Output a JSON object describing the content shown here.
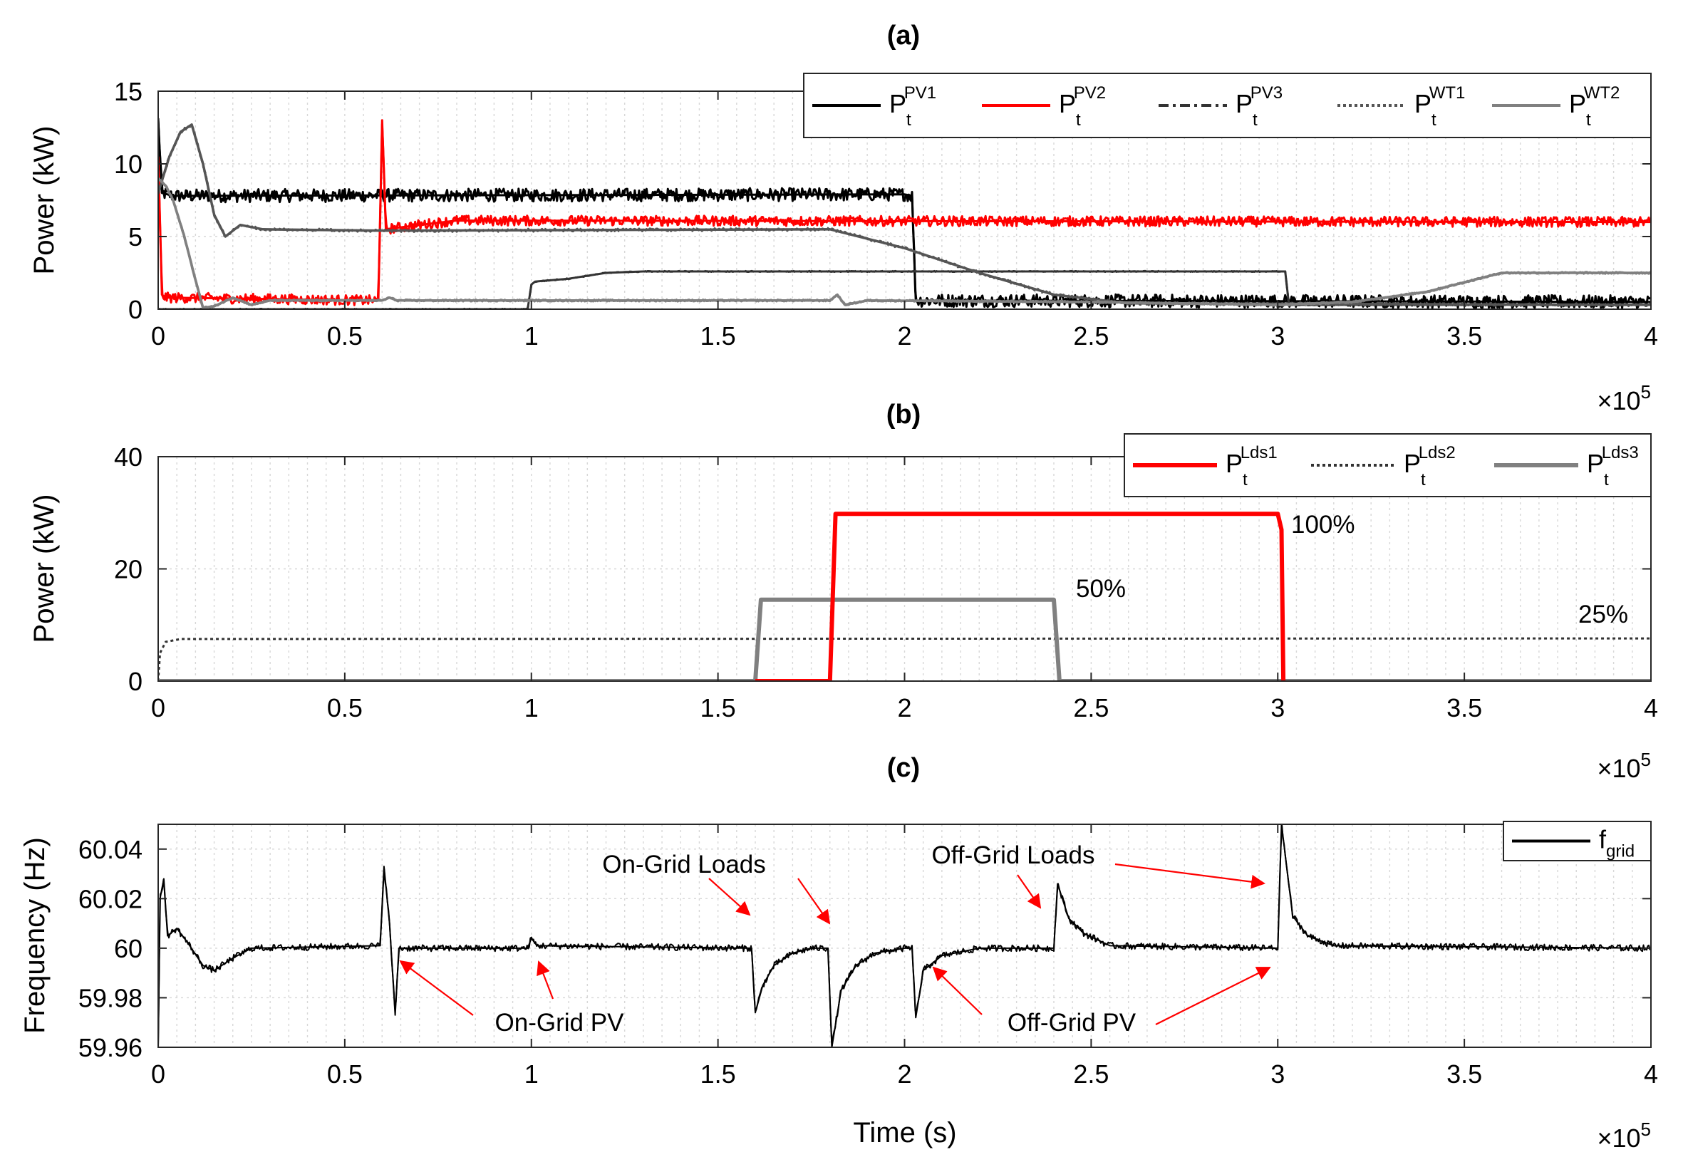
{
  "chart_data": [
    {
      "id": "a",
      "type": "line",
      "title": "(a)",
      "xlabel": "",
      "ylabel": "Power (kW)",
      "xlim": [
        0,
        400000
      ],
      "ylim": [
        0,
        15
      ],
      "xticks": [
        0,
        50000,
        100000,
        150000,
        200000,
        250000,
        300000,
        350000,
        400000
      ],
      "xtick_labels": [
        "0",
        "0.5",
        "1",
        "1.5",
        "2",
        "2.5",
        "3",
        "3.5",
        "4"
      ],
      "yticks": [
        0,
        5,
        10,
        15
      ],
      "ytick_labels": [
        "0",
        "5",
        "10",
        "15"
      ],
      "x_multiplier": {
        "base": "×10",
        "exp": "5"
      },
      "grid": true,
      "legend_position": "top-right",
      "series": [
        {
          "name": "PV1",
          "label_base": "P",
          "label_sub": "t",
          "label_sup": "PV1",
          "color": "#000000",
          "dash": "solid",
          "width": 3,
          "noise": 0.45,
          "points": [
            [
              0,
              13
            ],
            [
              1000,
              8
            ],
            [
              4000,
              7.8
            ],
            [
              200000,
              7.9
            ],
            [
              202000,
              7.8
            ],
            [
              203000,
              0.6
            ],
            [
              400000,
              0.5
            ]
          ]
        },
        {
          "name": "PV2",
          "label_base": "P",
          "label_sub": "t",
          "label_sup": "PV2",
          "color": "#ff0000",
          "dash": "solid",
          "width": 3,
          "noise": 0.35,
          "points": [
            [
              0,
              10.5
            ],
            [
              1000,
              1
            ],
            [
              2000,
              0.8
            ],
            [
              59000,
              0.6
            ],
            [
              60000,
              13
            ],
            [
              61000,
              5.5
            ],
            [
              70000,
              5.8
            ],
            [
              80000,
              6.1
            ],
            [
              400000,
              6
            ]
          ]
        },
        {
          "name": "PV3",
          "label_base": "P",
          "label_sub": "t",
          "label_sup": "PV3",
          "color": "#333333",
          "dash": "14,6,4,6",
          "width": 3,
          "noise": 0.03,
          "points": [
            [
              0,
              0
            ],
            [
              99000,
              0
            ],
            [
              100000,
              1.7
            ],
            [
              101000,
              1.9
            ],
            [
              110000,
              2.1
            ],
            [
              120000,
              2.5
            ],
            [
              130000,
              2.6
            ],
            [
              200000,
              2.6
            ],
            [
              300000,
              2.6
            ],
            [
              302000,
              2.6
            ],
            [
              303000,
              0.3
            ],
            [
              400000,
              0.3
            ]
          ]
        },
        {
          "name": "WT1",
          "label_base": "P",
          "label_sub": "t",
          "label_sup": "WT1",
          "color": "#555555",
          "dash": "4,4",
          "width": 3.5,
          "noise": 0.08,
          "points": [
            [
              0,
              8
            ],
            [
              3000,
              10.5
            ],
            [
              6000,
              12.2
            ],
            [
              9000,
              12.7
            ],
            [
              12000,
              10
            ],
            [
              15000,
              6.5
            ],
            [
              18000,
              5
            ],
            [
              22000,
              5.8
            ],
            [
              28000,
              5.5
            ],
            [
              60000,
              5.4
            ],
            [
              180000,
              5.5
            ],
            [
              200000,
              4.2
            ],
            [
              220000,
              2.5
            ],
            [
              240000,
              1
            ],
            [
              260000,
              0.4
            ],
            [
              400000,
              0.3
            ]
          ]
        },
        {
          "name": "WT2",
          "label_base": "P",
          "label_sub": "t",
          "label_sup": "WT2",
          "color": "#808080",
          "dash": "solid",
          "width": 3.5,
          "noise": 0.05,
          "points": [
            [
              0,
              9
            ],
            [
              2000,
              8.5
            ],
            [
              4000,
              7.5
            ],
            [
              7000,
              5
            ],
            [
              10000,
              2
            ],
            [
              12000,
              0.1
            ],
            [
              15000,
              0.2
            ],
            [
              20000,
              0.8
            ],
            [
              25000,
              0.3
            ],
            [
              30000,
              0.6
            ],
            [
              60000,
              0.6
            ],
            [
              62000,
              0.8
            ],
            [
              64000,
              0.6
            ],
            [
              180000,
              0.6
            ],
            [
              182000,
              1
            ],
            [
              184000,
              0.3
            ],
            [
              190000,
              0.6
            ],
            [
              250000,
              0.5
            ],
            [
              300000,
              0.3
            ],
            [
              320000,
              0.5
            ],
            [
              340000,
              1.2
            ],
            [
              360000,
              2.5
            ],
            [
              400000,
              2.5
            ]
          ]
        }
      ]
    },
    {
      "id": "b",
      "type": "line",
      "title": "(b)",
      "xlabel": "",
      "ylabel": "Power (kW)",
      "xlim": [
        0,
        400000
      ],
      "ylim": [
        0,
        40
      ],
      "xticks": [
        0,
        50000,
        100000,
        150000,
        200000,
        250000,
        300000,
        350000,
        400000
      ],
      "xtick_labels": [
        "0",
        "0.5",
        "1",
        "1.5",
        "2",
        "2.5",
        "3",
        "3.5",
        "4"
      ],
      "yticks": [
        0,
        20,
        40
      ],
      "ytick_labels": [
        "0",
        "20",
        "40"
      ],
      "x_multiplier": {
        "base": "×10",
        "exp": "5"
      },
      "grid": true,
      "legend_position": "top-right",
      "series": [
        {
          "name": "Lds2",
          "label_base": "P",
          "label_sub": "t",
          "label_sup": "Lds2",
          "color": "#333333",
          "dash": "4,4",
          "width": 3,
          "noise": 0,
          "points": [
            [
              0,
              0
            ],
            [
              500,
              5
            ],
            [
              2000,
              7
            ],
            [
              6000,
              7.5
            ],
            [
              400000,
              7.6
            ]
          ]
        },
        {
          "name": "Lds3",
          "label_base": "P",
          "label_sub": "t",
          "label_sup": "Lds3",
          "color": "#808080",
          "dash": "solid",
          "width": 6,
          "noise": 0,
          "points": [
            [
              0,
              0
            ],
            [
              160000,
              0
            ],
            [
              161500,
              14.5
            ],
            [
              240000,
              14.5
            ],
            [
              241500,
              0
            ],
            [
              400000,
              0
            ]
          ]
        },
        {
          "name": "Lds1",
          "label_base": "P",
          "label_sub": "t",
          "label_sup": "Lds1",
          "color": "#ff0000",
          "dash": "solid",
          "width": 6,
          "noise": 0,
          "points": [
            [
              160000,
              0
            ],
            [
              180000,
              0
            ],
            [
              181500,
              29.8
            ],
            [
              300000,
              29.8
            ],
            [
              301000,
              27
            ],
            [
              301500,
              0
            ]
          ]
        }
      ],
      "annotations": [
        {
          "text": "100%",
          "x": 304000,
          "y": 27.5
        },
        {
          "text": "50%",
          "x": 245000,
          "y": 16.5
        },
        {
          "text": "25%",
          "x": 372000,
          "y": 10
        }
      ]
    },
    {
      "id": "c",
      "type": "line",
      "title": "(c)",
      "xlabel": "Time (s)",
      "ylabel": "Frequency (Hz)",
      "xlim": [
        0,
        400000
      ],
      "ylim": [
        59.96,
        60.05
      ],
      "xticks": [
        0,
        50000,
        100000,
        150000,
        200000,
        250000,
        300000,
        350000,
        400000
      ],
      "xtick_labels": [
        "0",
        "0.5",
        "1",
        "1.5",
        "2",
        "2.5",
        "3",
        "3.5",
        "4"
      ],
      "yticks": [
        59.96,
        59.98,
        60,
        60.02,
        60.04
      ],
      "ytick_labels": [
        "59.96",
        "59.98",
        "60",
        "60.02",
        "60.04"
      ],
      "x_multiplier": {
        "base": "×10",
        "exp": "5"
      },
      "grid": true,
      "legend_position": "top-right",
      "series": [
        {
          "name": "fgrid",
          "label_base": "f",
          "label_sub": "grid",
          "label_sup": "",
          "color": "#000000",
          "dash": "solid",
          "width": 2,
          "noise": 0.0013,
          "points": [
            [
              0,
              59.96
            ],
            [
              500,
              60.02
            ],
            [
              1500,
              60.028
            ],
            [
              2500,
              60.005
            ],
            [
              5000,
              60.008
            ],
            [
              8000,
              60.002
            ],
            [
              12000,
              59.993
            ],
            [
              15000,
              59.991
            ],
            [
              20000,
              59.996
            ],
            [
              25000,
              60
            ],
            [
              59500,
              60.001
            ],
            [
              60500,
              60.033
            ],
            [
              62000,
              60.01
            ],
            [
              63500,
              59.973
            ],
            [
              64500,
              60
            ],
            [
              99000,
              60
            ],
            [
              100000,
              60.004
            ],
            [
              101500,
              60.001
            ],
            [
              159000,
              60
            ],
            [
              160000,
              59.974
            ],
            [
              162000,
              59.985
            ],
            [
              165000,
              59.993
            ],
            [
              170000,
              59.998
            ],
            [
              175000,
              60
            ],
            [
              179500,
              60
            ],
            [
              180500,
              59.96
            ],
            [
              183000,
              59.983
            ],
            [
              187000,
              59.993
            ],
            [
              192000,
              59.998
            ],
            [
              200000,
              60
            ],
            [
              202000,
              60
            ],
            [
              203000,
              59.972
            ],
            [
              205000,
              59.991
            ],
            [
              210000,
              59.997
            ],
            [
              220000,
              60
            ],
            [
              240000,
              60
            ],
            [
              241000,
              60.026
            ],
            [
              244000,
              60.012
            ],
            [
              248000,
              60.006
            ],
            [
              255000,
              60.001
            ],
            [
              300000,
              60
            ],
            [
              301000,
              60.05
            ],
            [
              304000,
              60.013
            ],
            [
              308000,
              60.005
            ],
            [
              315000,
              60.001
            ],
            [
              400000,
              60
            ]
          ]
        }
      ],
      "annotations": [
        {
          "text": "On-Grid Loads",
          "x": 136000,
          "y": 60.043
        },
        {
          "text": "Off-Grid Loads",
          "x": 229000,
          "y": 60.048
        },
        {
          "text": "On-Grid PV",
          "x": 102000,
          "y": 59.967
        },
        {
          "text": "Off-Grid PV",
          "x": 246000,
          "y": 59.967
        }
      ]
    }
  ]
}
